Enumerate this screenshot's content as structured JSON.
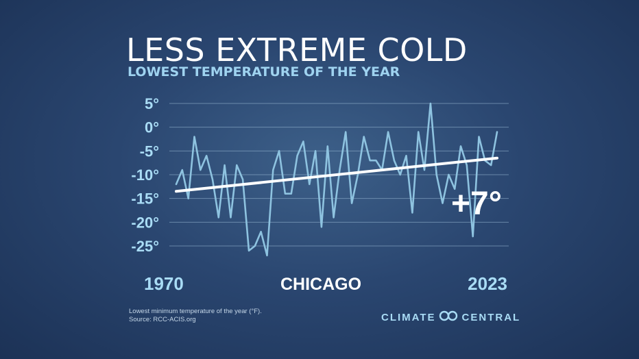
{
  "title": "LESS EXTREME COLD",
  "subtitle": "LOWEST TEMPERATURE OF THE YEAR",
  "city_label": "CHICAGO",
  "change_label": "+7°",
  "footnote": {
    "line1": "Lowest minimum temperature of the year (°F).",
    "line2": "Source: RCC-ACIS.org"
  },
  "brand": {
    "left": "CLIMATE",
    "right": "CENTRAL",
    "icon": "infinity-loop-icon"
  },
  "colors": {
    "series": "#8ec3e0",
    "trend": "#ffffff",
    "tick_text": "#a9dcf5"
  },
  "chart_data": {
    "type": "line",
    "x_tick_labels": [
      "1970",
      "2023"
    ],
    "y_tick_labels": [
      "5°",
      "0°",
      "-5°",
      "-10°",
      "-15°",
      "-20°",
      "-25°"
    ],
    "y_ticks": [
      5,
      0,
      -5,
      -10,
      -15,
      -20,
      -25
    ],
    "xlim": [
      1970,
      2023
    ],
    "ylim": [
      -27,
      5
    ],
    "grid": true,
    "series": [
      {
        "x": [
          1970,
          1971,
          1972,
          1973,
          1974,
          1975,
          1976,
          1977,
          1978,
          1979,
          1980,
          1981,
          1982,
          1983,
          1984,
          1985,
          1986,
          1987,
          1988,
          1989,
          1990,
          1991,
          1992,
          1993,
          1994,
          1995,
          1996,
          1997,
          1998,
          1999,
          2000,
          2001,
          2002,
          2003,
          2004,
          2005,
          2006,
          2007,
          2008,
          2009,
          2010,
          2011,
          2012,
          2013,
          2014,
          2015,
          2016,
          2017,
          2018,
          2019,
          2020,
          2021,
          2022,
          2023
        ],
        "values": [
          -12,
          -9,
          -15,
          -2,
          -9,
          -6,
          -11,
          -19,
          -8,
          -19,
          -8,
          -11,
          -26,
          -25,
          -22,
          -27,
          -9,
          -5,
          -14,
          -14,
          -6,
          -3,
          -12,
          -5,
          -21,
          -4,
          -19,
          -9,
          -1,
          -16,
          -10,
          -2,
          -7,
          -7,
          -9,
          -1,
          -7,
          -10,
          -6,
          -18,
          -1,
          -9,
          5,
          -10,
          -16,
          -10,
          -13,
          -4,
          -8,
          -23,
          -2,
          -7,
          -8,
          -1
        ]
      },
      {
        "x": [
          1970,
          2023
        ],
        "values": [
          -13.5,
          -6.5
        ]
      }
    ]
  }
}
